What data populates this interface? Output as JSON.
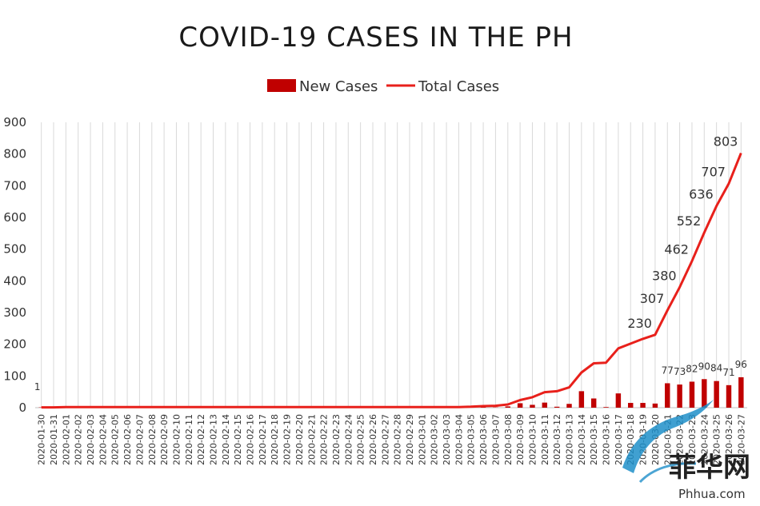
{
  "chart_data": {
    "type": "bar+line",
    "title": "COVID-19 CASES IN THE PH",
    "xlabel": "",
    "ylabel": "",
    "ylim": [
      0,
      900
    ],
    "yticks": [
      0,
      100,
      200,
      300,
      400,
      500,
      600,
      700,
      800,
      900
    ],
    "grid": "vertical",
    "legend_position": "top-center",
    "categories": [
      "2020-01-30",
      "2020-01-31",
      "2020-02-01",
      "2020-02-02",
      "2020-02-03",
      "2020-02-04",
      "2020-02-05",
      "2020-02-06",
      "2020-02-07",
      "2020-02-08",
      "2020-02-09",
      "2020-02-10",
      "2020-02-11",
      "2020-02-12",
      "2020-02-13",
      "2020-02-14",
      "2020-02-15",
      "2020-02-16",
      "2020-02-17",
      "2020-02-18",
      "2020-02-19",
      "2020-02-20",
      "2020-02-21",
      "2020-02-22",
      "2020-02-23",
      "2020-02-24",
      "2020-02-25",
      "2020-02-26",
      "2020-02-27",
      "2020-02-28",
      "2020-02-29",
      "2020-03-01",
      "2020-03-02",
      "2020-03-03",
      "2020-03-04",
      "2020-03-05",
      "2020-03-06",
      "2020-03-07",
      "2020-03-08",
      "2020-03-09",
      "2020-03-10",
      "2020-03-11",
      "2020-03-12",
      "2020-03-13",
      "2020-03-14",
      "2020-03-15",
      "2020-03-16",
      "2020-03-17",
      "2020-03-18",
      "2020-03-19",
      "2020-03-20",
      "2020-03-21",
      "2020-03-22",
      "2020-03-23",
      "2020-03-24",
      "2020-03-25",
      "2020-03-26",
      "2020-03-27"
    ],
    "series": [
      {
        "name": "New Cases",
        "type": "bar",
        "color": "#c00000",
        "values": [
          1,
          0,
          1,
          0,
          0,
          0,
          0,
          0,
          0,
          0,
          0,
          0,
          0,
          0,
          0,
          0,
          0,
          0,
          0,
          0,
          0,
          0,
          0,
          0,
          0,
          0,
          0,
          0,
          0,
          0,
          0,
          0,
          0,
          0,
          0,
          0,
          2,
          1,
          4,
          14,
          9,
          16,
          3,
          12,
          52,
          29,
          2,
          45,
          15,
          15,
          13,
          77,
          73,
          82,
          90,
          84,
          71,
          96
        ],
        "data_labels": {
          "0": "1",
          "51": "77",
          "52": "73",
          "53": "82",
          "54": "90",
          "55": "84",
          "56": "71",
          "57": "96"
        }
      },
      {
        "name": "Total Cases",
        "type": "line",
        "color": "#e8201b",
        "values": [
          1,
          1,
          2,
          2,
          2,
          2,
          2,
          2,
          2,
          2,
          2,
          2,
          2,
          2,
          2,
          2,
          2,
          2,
          2,
          2,
          2,
          2,
          2,
          2,
          2,
          2,
          2,
          2,
          2,
          2,
          2,
          2,
          2,
          2,
          2,
          3,
          5,
          6,
          10,
          24,
          33,
          49,
          52,
          64,
          111,
          140,
          142,
          187,
          202,
          217,
          230,
          307,
          380,
          462,
          552,
          636,
          707,
          803
        ],
        "data_labels": {
          "50": "230",
          "51": "307",
          "52": "380",
          "53": "462",
          "54": "552",
          "55": "636",
          "56": "707",
          "57": "803"
        }
      }
    ]
  },
  "watermark": {
    "cn_text": "菲华网",
    "url_text": "Phhua.com"
  }
}
